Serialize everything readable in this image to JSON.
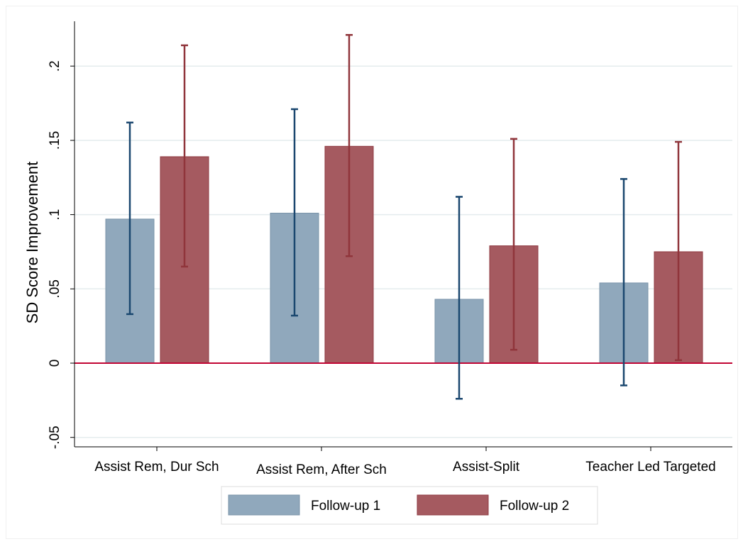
{
  "chart_data": {
    "type": "bar",
    "ylabel": "SD Score Improvement",
    "xlabel": "",
    "ylim": [
      -0.055,
      0.23
    ],
    "yticks": [
      {
        "value": -0.05,
        "label": "-.05"
      },
      {
        "value": 0,
        "label": "0"
      },
      {
        "value": 0.05,
        "label": ".05"
      },
      {
        "value": 0.1,
        "label": ".1"
      },
      {
        "value": 0.15,
        "label": ".15"
      },
      {
        "value": 0.2,
        "label": ".2"
      }
    ],
    "grid": true,
    "legend_position": "bottom",
    "categories": [
      "Assist Rem, Dur Sch",
      "Assist Rem, After Sch",
      "Assist-Split",
      "Teacher Led Targeted"
    ],
    "series": [
      {
        "name": "Follow-up 1",
        "color": "#90a8bc",
        "edge_color": "#7a93a9",
        "error_color": "#1a476f",
        "values": [
          0.097,
          0.101,
          0.043,
          0.054
        ],
        "ci_low": [
          0.033,
          0.032,
          -0.024,
          -0.015
        ],
        "ci_high": [
          0.162,
          0.171,
          0.112,
          0.124
        ]
      },
      {
        "name": "Follow-up 2",
        "color": "#a55a60",
        "edge_color": "#8f3a42",
        "error_color": "#90353b",
        "values": [
          0.139,
          0.146,
          0.079,
          0.075
        ],
        "ci_low": [
          0.065,
          0.072,
          0.009,
          0.002
        ],
        "ci_high": [
          0.214,
          0.221,
          0.151,
          0.149
        ]
      }
    ],
    "zero_line_color": "#c10534",
    "gridline_color": "#e4ecee"
  }
}
